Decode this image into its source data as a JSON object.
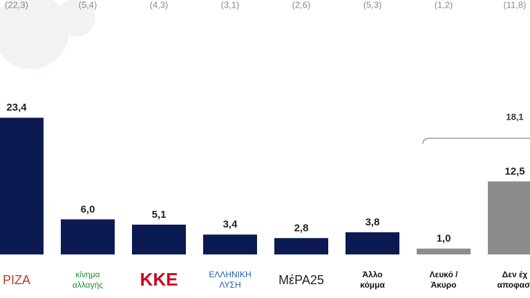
{
  "chart_data": {
    "type": "bar",
    "categories": [
      [
        "ΡΙΖΑ"
      ],
      [
        "κίνημα",
        "αλλαγής"
      ],
      [
        "ΚΚΕ"
      ],
      [
        "ΕΛΛΗΝΙΚΗ",
        "ΛΥΣΗ"
      ],
      [
        "ΜέΡΑ25"
      ],
      [
        "Άλλο",
        "κόμμα"
      ],
      [
        "Λευκό /",
        "Άκυρο"
      ],
      [
        "Δεν έχ",
        "αποφασί"
      ]
    ],
    "category_colors": [
      "#c0392b",
      "#1f8a3a",
      "#d0021b",
      "#1f5fa8",
      "#222222",
      "#111111",
      "#111111",
      "#111111"
    ],
    "values": [
      23.4,
      6.0,
      5.1,
      3.4,
      2.8,
      3.8,
      1.0,
      12.5
    ],
    "value_labels": [
      "23,4",
      "6,0",
      "5,1",
      "3,4",
      "2,8",
      "3,8",
      "1,0",
      "12,5"
    ],
    "previous_labels": [
      "(22,3)",
      "(5,4)",
      "(4,3)",
      "(3,1)",
      "(2,6)",
      "(5,3)",
      "(1,2)",
      "(11,8)"
    ],
    "colors": [
      "#0c1a52",
      "#0c1a52",
      "#0c1a52",
      "#0c1a52",
      "#0c1a52",
      "#0c1a52",
      "#8c8c8c",
      "#8c8c8c"
    ],
    "bracket": {
      "label": "18,1",
      "from": 6,
      "to": 7
    }
  }
}
